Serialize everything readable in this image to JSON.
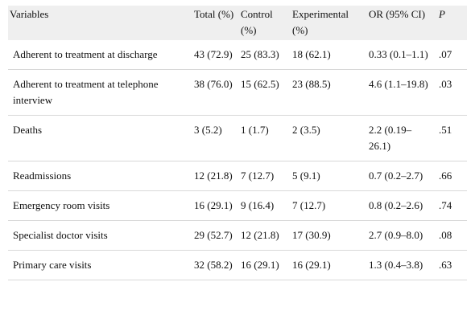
{
  "table": {
    "headers": [
      "Variables",
      "Total (%)",
      "Control (%)",
      "Experimental (%)",
      "OR (95% CI)",
      "P"
    ],
    "rows": [
      [
        "Adherent to treatment at discharge",
        "43 (72.9)",
        "25 (83.3)",
        "18 (62.1)",
        "0.33 (0.1–1.1)",
        ".07"
      ],
      [
        "Adherent to treatment at telephone interview",
        "38 (76.0)",
        "15 (62.5)",
        "23 (88.5)",
        "4.6 (1.1–19.8)",
        ".03"
      ],
      [
        "Deaths",
        "3 (5.2)",
        "1 (1.7)",
        "2 (3.5)",
        "2.2 (0.19–26.1)",
        ".51"
      ],
      [
        "Readmissions",
        "12 (21.8)",
        "7 (12.7)",
        "5 (9.1)",
        "0.7 (0.2–2.7)",
        ".66"
      ],
      [
        "Emergency room visits",
        "16 (29.1)",
        "9 (16.4)",
        "7 (12.7)",
        "0.8 (0.2–2.6)",
        ".74"
      ],
      [
        "Specialist doctor visits",
        "29 (52.7)",
        "12 (21.8)",
        "17 (30.9)",
        "2.7 (0.9–8.0)",
        ".08"
      ],
      [
        "Primary care visits",
        "32 (58.2)",
        "16 (29.1)",
        "16 (29.1)",
        "1.3 (0.4–3.8)",
        ".63"
      ]
    ]
  },
  "colors": {
    "header_bg": "#efefef",
    "rule": "#d8d8d8",
    "text": "#111111"
  }
}
